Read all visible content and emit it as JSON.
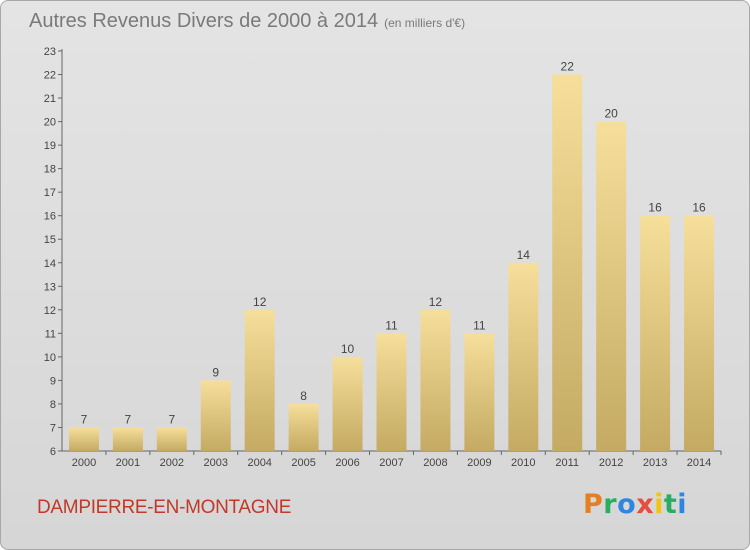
{
  "title": "Autres Revenus Divers de 2000 à 2014",
  "subtitle": "(en milliers d'€)",
  "commune": "DAMPIERRE-EN-MONTAGNE",
  "logo": {
    "letters": [
      "P",
      "r",
      "o",
      "x",
      "i",
      "t",
      "i"
    ],
    "colors": [
      "#e67e22",
      "#27ae60",
      "#2e86de",
      "#e74c3c",
      "#f1c40f",
      "#27ae60",
      "#2e86de"
    ]
  },
  "colors": {
    "bar_top": "#f6df9b",
    "bar_bottom": "#c4aa62",
    "commune": "#c0392b"
  },
  "chart_data": {
    "type": "bar",
    "categories": [
      "2000",
      "2001",
      "2002",
      "2003",
      "2004",
      "2005",
      "2006",
      "2007",
      "2008",
      "2009",
      "2010",
      "2011",
      "2012",
      "2013",
      "2014"
    ],
    "values": [
      7,
      7,
      7,
      9,
      12,
      8,
      10,
      11,
      12,
      11,
      14,
      22,
      20,
      16,
      16
    ],
    "ylim": [
      6,
      23
    ],
    "yticks": [
      6,
      7,
      8,
      9,
      10,
      11,
      12,
      13,
      14,
      15,
      16,
      17,
      18,
      19,
      20,
      21,
      22,
      23
    ],
    "grid": false,
    "legend": "none"
  }
}
